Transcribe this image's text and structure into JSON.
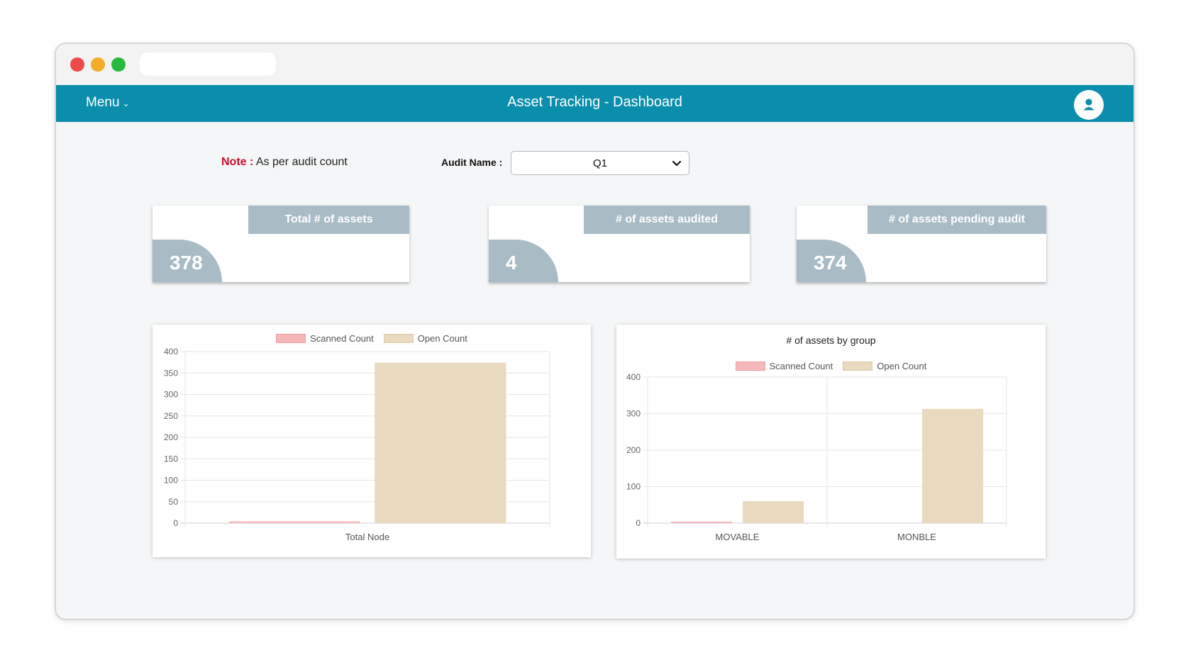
{
  "app": {
    "menu_label": "Menu",
    "title": "Asset Tracking - Dashboard"
  },
  "note": {
    "label": "Note :",
    "text": "As per audit count"
  },
  "audit": {
    "label": "Audit Name :",
    "selected": "Q1"
  },
  "kpis": [
    {
      "title": "Total # of assets",
      "value": "378"
    },
    {
      "title": "# of assets audited",
      "value": "4"
    },
    {
      "title": "# of assets pending audit",
      "value": "374"
    }
  ],
  "colors": {
    "navbar": "#0b8eab",
    "kpi_accent": "#a9bcc6",
    "scanned": "#f5b7ba",
    "open": "#e8d9bf",
    "note_label": "#c8102e"
  },
  "chart_data": [
    {
      "type": "bar",
      "title": "",
      "categories": [
        "Total Node"
      ],
      "series": [
        {
          "name": "Scanned Count",
          "values": [
            4
          ]
        },
        {
          "name": "Open Count",
          "values": [
            374
          ]
        }
      ],
      "ylim": [
        0,
        400
      ],
      "yticks": [
        0,
        50,
        100,
        150,
        200,
        250,
        300,
        350,
        400
      ],
      "legend": "top",
      "grid": true
    },
    {
      "type": "bar",
      "title": "# of assets by group",
      "categories": [
        "MOVABLE",
        "MONBLE"
      ],
      "series": [
        {
          "name": "Scanned Count",
          "values": [
            4,
            0
          ]
        },
        {
          "name": "Open Count",
          "values": [
            60,
            313
          ]
        }
      ],
      "ylim": [
        0,
        400
      ],
      "yticks": [
        0,
        100,
        200,
        300,
        400
      ],
      "legend": "top",
      "grid": true
    }
  ]
}
